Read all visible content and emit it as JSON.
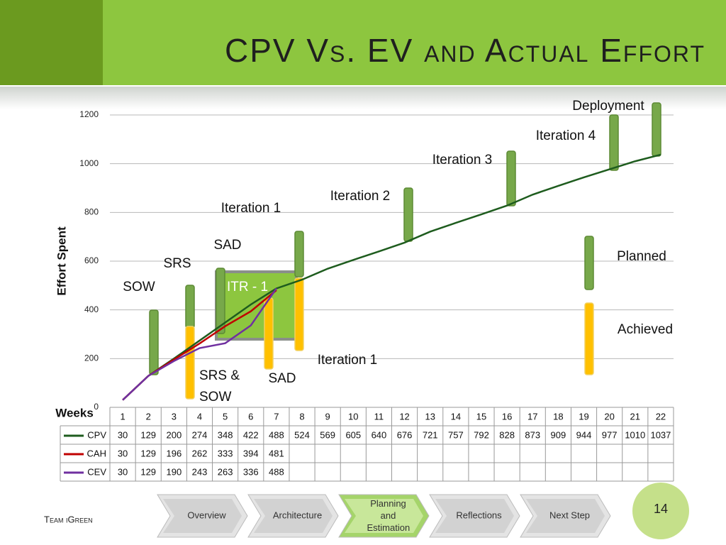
{
  "slide": {
    "title": "CPV Vs. EV and Actual Effort",
    "footer": "Team iGreen",
    "page_number": "14",
    "nav": [
      "Overview",
      "Architecture",
      "Planning and Estimation",
      "Reflections",
      "Next Step"
    ]
  },
  "chart_data": {
    "type": "line",
    "y_label": "Effort Spent",
    "x_label": "Weeks",
    "categories": [
      "1",
      "2",
      "3",
      "4",
      "5",
      "6",
      "7",
      "8",
      "9",
      "10",
      "11",
      "12",
      "13",
      "14",
      "15",
      "16",
      "17",
      "18",
      "19",
      "20",
      "21",
      "22"
    ],
    "series": [
      {
        "name": "CPV",
        "color": "#1e5c1e",
        "values": [
          30,
          129,
          200,
          274,
          348,
          422,
          488,
          524,
          569,
          605,
          640,
          676,
          721,
          757,
          792,
          828,
          873,
          909,
          944,
          977,
          1010,
          1037
        ]
      },
      {
        "name": "CAH",
        "color": "#c00000",
        "values": [
          30,
          129,
          196,
          262,
          333,
          394,
          481,
          null,
          null,
          null,
          null,
          null,
          null,
          null,
          null,
          null,
          null,
          null,
          null,
          null,
          null,
          null
        ]
      },
      {
        "name": "CEV",
        "color": "#7030a0",
        "values": [
          30,
          129,
          190,
          243,
          263,
          336,
          488,
          null,
          null,
          null,
          null,
          null,
          null,
          null,
          null,
          null,
          null,
          null,
          null,
          null,
          null,
          null
        ]
      }
    ],
    "ylim": [
      0,
      1200
    ],
    "yticks": [
      0,
      200,
      400,
      600,
      800,
      1000,
      1200
    ],
    "grid": true,
    "annotations": [
      "Deployment",
      "Iteration 4",
      "Iteration 3",
      "Iteration 2",
      "Iteration 1",
      "SAD",
      "SRS",
      "SOW",
      "ITR - 1",
      "Iteration 1",
      "SRS & SOW",
      "SAD"
    ],
    "legend": [
      "Planned",
      "Achieved"
    ]
  }
}
